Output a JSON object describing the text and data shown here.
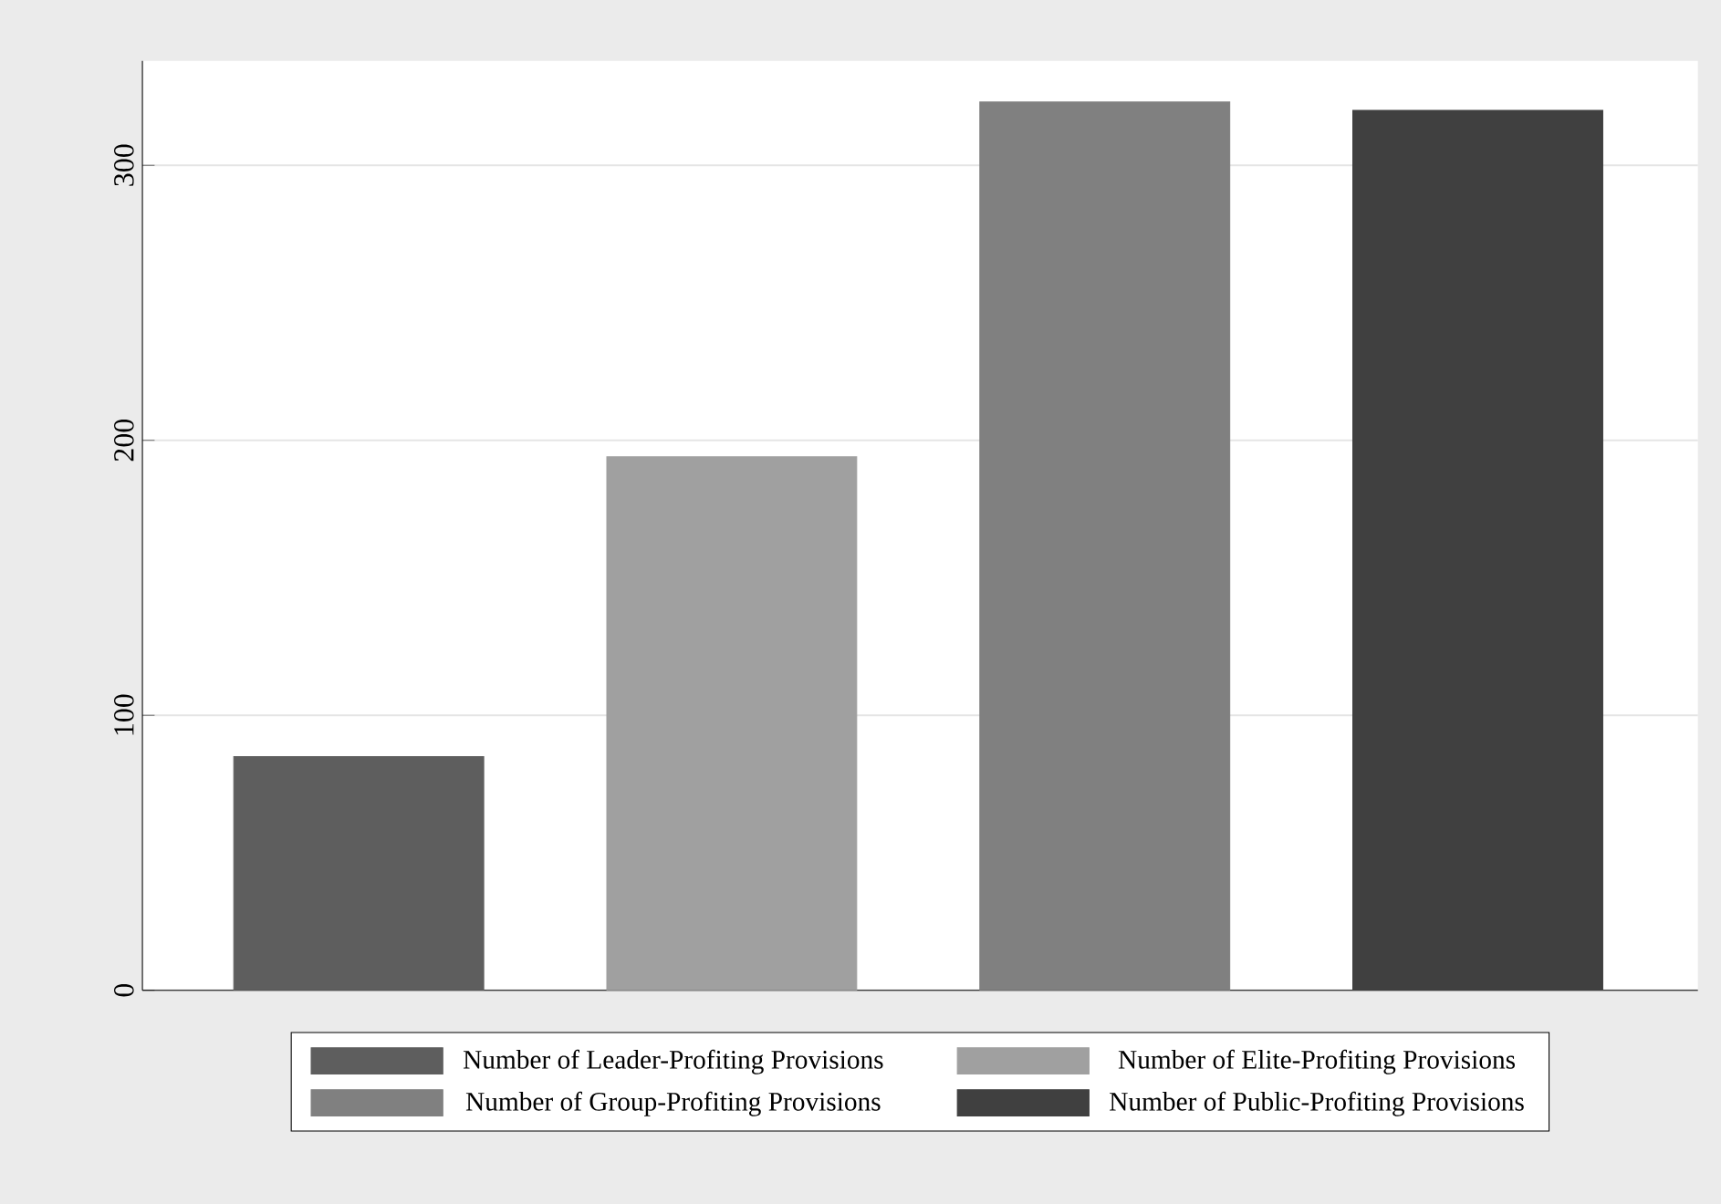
{
  "chart_data": {
    "type": "bar",
    "categories": [
      null,
      null,
      null,
      null
    ],
    "series": [
      {
        "name": "Number of Leader-Profiting Provisions",
        "color": "#5e5e5e",
        "values": [
          85,
          null,
          null,
          null
        ]
      },
      {
        "name": "Number of Elite-Profiting Provisions",
        "color": "#a0a0a0",
        "values": [
          null,
          194,
          null,
          null
        ]
      },
      {
        "name": "Number of Group-Profiting Provisions",
        "color": "#808080",
        "values": [
          null,
          null,
          323,
          null
        ]
      },
      {
        "name": "Number of Public-Profiting Provisions",
        "color": "#404040",
        "values": [
          null,
          null,
          null,
          320
        ]
      }
    ],
    "ylim": [
      0,
      338
    ],
    "yticks": [
      0,
      100,
      200,
      300
    ],
    "grid": "y",
    "legend": "bottom",
    "tick_labels": "y"
  }
}
